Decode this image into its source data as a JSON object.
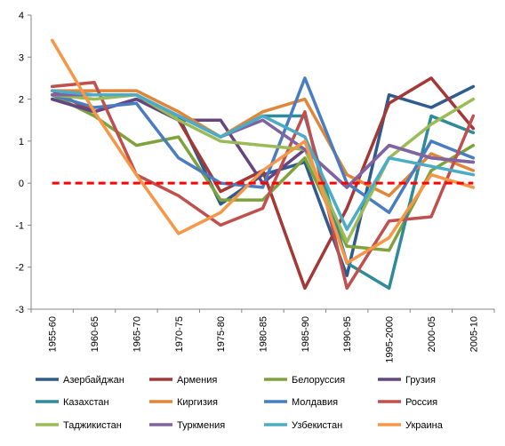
{
  "chart_data": {
    "type": "line",
    "categories": [
      "1955-60",
      "1960-65",
      "1965-70",
      "1970-75",
      "1975-80",
      "1980-85",
      "1985-90",
      "1990-95",
      "1995-2000",
      "2000-05",
      "2005-10"
    ],
    "ylim": [
      -3,
      4
    ],
    "yticks": [
      "4",
      "3",
      "2",
      "1",
      "0",
      "-1",
      "-2",
      "-3"
    ],
    "grid": false,
    "legend_position": "bottom",
    "reference_line": {
      "y": 0,
      "color": "#FF0000",
      "style": "dashed"
    },
    "series": [
      {
        "name": "Азербайджан",
        "color": "#2F5B8F",
        "values": [
          2.0,
          1.7,
          2.0,
          1.6,
          -0.5,
          0.2,
          0.5,
          -2.2,
          2.1,
          1.8,
          2.3
        ]
      },
      {
        "name": "Армения",
        "color": "#A33836",
        "values": [
          2.2,
          1.7,
          2.0,
          1.5,
          -0.2,
          0.3,
          -2.5,
          -0.6,
          1.9,
          2.5,
          1.3
        ]
      },
      {
        "name": "Белоруссия",
        "color": "#7EA23C",
        "values": [
          2.1,
          1.6,
          0.9,
          1.1,
          -0.4,
          -0.4,
          0.6,
          -1.5,
          -1.6,
          0.3,
          0.9
        ]
      },
      {
        "name": "Грузия",
        "color": "#65457F",
        "values": [
          2.0,
          1.7,
          2.0,
          1.5,
          1.5,
          0.0,
          0.8,
          -0.1,
          0.9,
          0.6,
          0.5
        ]
      },
      {
        "name": "Казахстан",
        "color": "#2F8A99",
        "values": [
          2.1,
          2.1,
          2.1,
          1.6,
          1.1,
          1.6,
          1.6,
          -1.9,
          -2.5,
          1.6,
          1.2
        ]
      },
      {
        "name": "Киргизия",
        "color": "#E0863A",
        "values": [
          2.2,
          2.2,
          2.2,
          1.7,
          1.1,
          1.7,
          2.0,
          0.2,
          -0.3,
          0.7,
          0.3
        ]
      },
      {
        "name": "Молдавия",
        "color": "#4A7CC0",
        "values": [
          2.1,
          1.8,
          1.9,
          0.6,
          0.0,
          -0.1,
          2.5,
          0.0,
          -0.7,
          1.0,
          0.6
        ]
      },
      {
        "name": "Россия",
        "color": "#C0504D",
        "values": [
          2.3,
          2.4,
          0.2,
          -0.3,
          -1.0,
          -0.6,
          1.7,
          -2.5,
          -0.9,
          -0.8,
          1.6
        ]
      },
      {
        "name": "Таджикистан",
        "color": "#9BBB59",
        "values": [
          2.1,
          2.0,
          2.1,
          1.5,
          1.0,
          0.9,
          0.8,
          -1.4,
          0.6,
          1.4,
          2.0
        ]
      },
      {
        "name": "Туркмения",
        "color": "#8064A2",
        "values": [
          2.1,
          2.1,
          2.1,
          1.6,
          1.1,
          1.5,
          0.8,
          -0.1,
          0.9,
          0.6,
          0.5
        ]
      },
      {
        "name": "Узбекистан",
        "color": "#4BACC6",
        "values": [
          2.2,
          2.1,
          2.1,
          1.6,
          1.1,
          1.6,
          1.1,
          -1.1,
          0.6,
          0.4,
          0.2
        ]
      },
      {
        "name": "Украина",
        "color": "#F79646",
        "values": [
          3.4,
          1.7,
          0.2,
          -1.2,
          -0.7,
          0.3,
          1.0,
          -1.9,
          -1.3,
          0.2,
          -0.1
        ]
      }
    ]
  }
}
